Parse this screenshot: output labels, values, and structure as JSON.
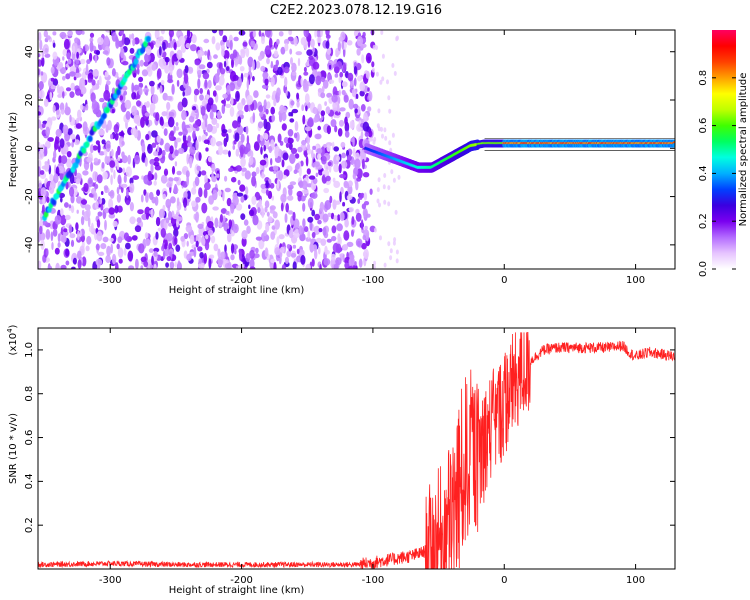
{
  "title": "C2E2.2023.078.12.19.G16",
  "chart_data": [
    {
      "type": "heatmap",
      "title": "C2E2.2023.078.12.19.G16",
      "xlabel": "Height of straight line (km)",
      "ylabel": "Frequency (Hz)",
      "xlim": [
        -355,
        130
      ],
      "ylim": [
        -50,
        49
      ],
      "x_ticks": [
        -300,
        -200,
        -100,
        0,
        100
      ],
      "y_ticks": [
        -40,
        -20,
        0,
        20,
        40
      ],
      "colorbar": {
        "label": "Normalized spectral amplitude",
        "range": [
          0.0,
          1.0
        ],
        "ticks": [
          0.0,
          0.2,
          0.4,
          0.6,
          0.8
        ],
        "colormap": "rainbow",
        "colors": [
          "#ffffff",
          "#e6c3ff",
          "#b36bff",
          "#7a00f0",
          "#3a00e0",
          "#0040ff",
          "#00b0ff",
          "#00ffe0",
          "#00ff60",
          "#40ff00",
          "#c0ff00",
          "#ffff00",
          "#ffa000",
          "#ff4000",
          "#ff0000",
          "#ff0060"
        ]
      },
      "noise_region_x": [
        -355,
        -100
      ],
      "track_1": {
        "description_x": [
          -350,
          -330,
          -315,
          -300,
          -285,
          -270
        ],
        "y": [
          -28,
          -10,
          5,
          18,
          32,
          47
        ]
      },
      "track_2": {
        "x": [
          -105,
          -95,
          -85,
          -75,
          -65,
          -55,
          -45,
          -35,
          -25,
          -15,
          0,
          20,
          50,
          80,
          100,
          130
        ],
        "y": [
          0,
          -2,
          -4,
          -6,
          -8,
          -8,
          -5,
          -2,
          1,
          2,
          2,
          2,
          2,
          2,
          2,
          2
        ]
      }
    },
    {
      "type": "line",
      "title": "",
      "xlabel": "Height of straight line (km)",
      "ylabel": "SNR (10 * v/v)",
      "scale_label": "(x10",
      "scale_exp": "4",
      "scale_close": ")",
      "xlim": [
        -355,
        130
      ],
      "ylim": [
        0,
        1.1
      ],
      "x_ticks": [
        -300,
        -200,
        -100,
        0,
        100
      ],
      "y_ticks": [
        0.2,
        0.4,
        0.6,
        0.8,
        1.0
      ],
      "color": "#ff2020",
      "series": [
        {
          "x": [
            -355,
            -300,
            -250,
            -200,
            -150,
            -110,
            -90,
            -70,
            -55,
            -45,
            -40,
            -35,
            -30,
            -25,
            -20,
            -15,
            -10,
            -5,
            0,
            5,
            10,
            20,
            30,
            40,
            60,
            80,
            90,
            95,
            100,
            110,
            120,
            130
          ],
          "values": [
            0.02,
            0.025,
            0.02,
            0.02,
            0.02,
            0.02,
            0.04,
            0.06,
            0.09,
            0.15,
            0.22,
            0.35,
            0.48,
            0.55,
            0.5,
            0.6,
            0.65,
            0.7,
            0.75,
            0.82,
            0.88,
            0.95,
            1.0,
            1.01,
            1.01,
            1.01,
            1.02,
            0.99,
            0.97,
            0.99,
            0.98,
            0.97
          ]
        }
      ]
    }
  ]
}
